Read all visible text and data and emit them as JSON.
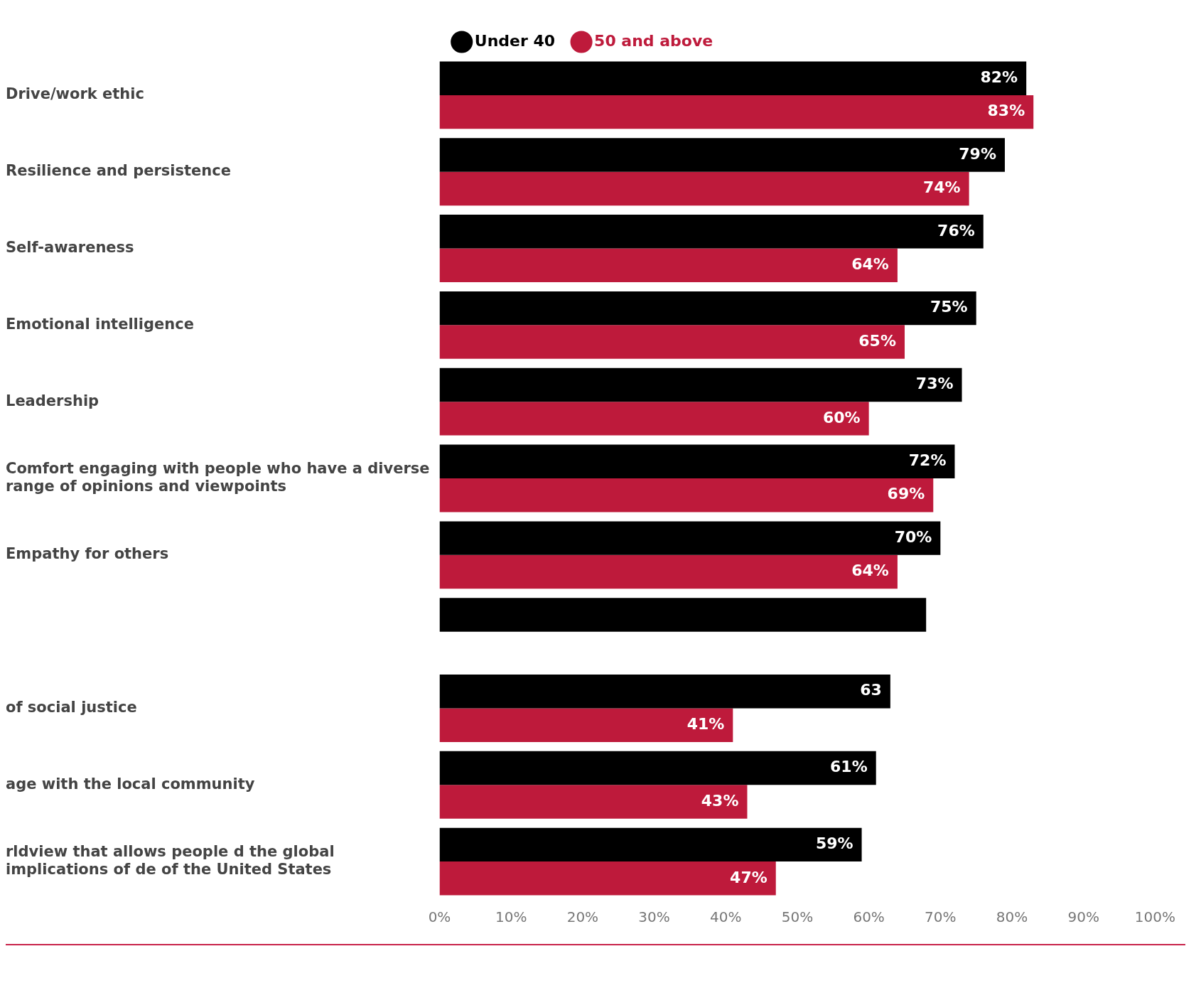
{
  "chart_data": {
    "type": "bar",
    "orientation": "horizontal",
    "categories": [
      "Drive/work ethic",
      "Resilience and persistence",
      "Self-awareness",
      "Emotional intelligence",
      "Leadership",
      "Comfort engaging with people who have a diverse range of opinions and viewpoints",
      "Empathy for others",
      null,
      "of social justice",
      "age with the local community",
      "rldview that allows people d the global implications of de of the United States"
    ],
    "series": [
      {
        "name": "Under 40",
        "color": "#000000",
        "values": [
          82,
          79,
          76,
          75,
          73,
          72,
          70,
          68,
          63,
          61,
          59
        ],
        "value_labels": [
          "82%",
          "79%",
          "76%",
          "75%",
          "73%",
          "72%",
          "70%",
          null,
          "63",
          "61%",
          "59%"
        ]
      },
      {
        "name": "50 and above",
        "color": "#be1a3b",
        "values": [
          83,
          74,
          64,
          65,
          60,
          69,
          64,
          null,
          41,
          43,
          47
        ],
        "value_labels": [
          "83%",
          "74%",
          "64%",
          "65%",
          "60%",
          "69%",
          "64%",
          null,
          "41%",
          "43%",
          "47%"
        ]
      }
    ],
    "xlim": [
      0,
      100
    ],
    "xticks": [
      {
        "value": 0,
        "label": "0%"
      },
      {
        "value": 10,
        "label": "10%"
      },
      {
        "value": 20,
        "label": "20%"
      },
      {
        "value": 30,
        "label": "30%"
      },
      {
        "value": 40,
        "label": "40%"
      },
      {
        "value": 50,
        "label": "50%"
      },
      {
        "value": 60,
        "label": "60%"
      },
      {
        "value": 70,
        "label": "70%"
      },
      {
        "value": 80,
        "label": "80%"
      },
      {
        "value": 90,
        "label": "90%"
      },
      {
        "value": 100,
        "label": "100%"
      }
    ],
    "grid": false,
    "legend": "top"
  }
}
